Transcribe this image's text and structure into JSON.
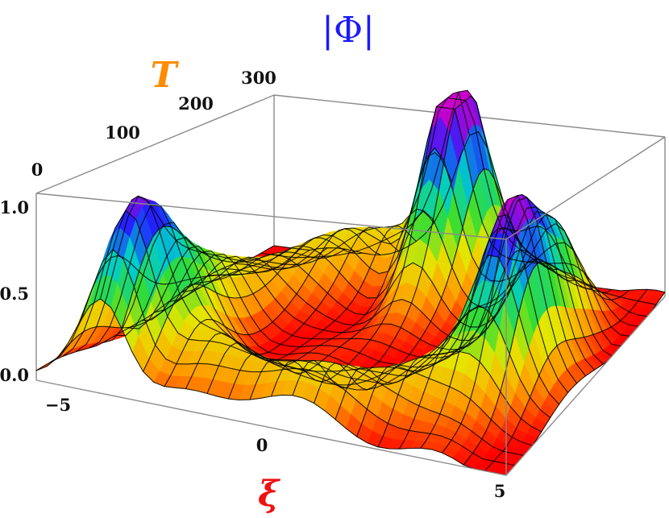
{
  "chart_data": {
    "type": "surface3d",
    "title": "|Φ|",
    "title_color": "#1a1aff",
    "axes": {
      "x": {
        "label": "ξ",
        "label_color": "#ee1111",
        "range": [
          -5,
          5
        ],
        "ticks": [
          "−5",
          "0",
          "5"
        ]
      },
      "y": {
        "label": "T",
        "label_color": "#ff8c00",
        "range": [
          0,
          300
        ],
        "ticks": [
          "0",
          "100",
          "200",
          "300"
        ]
      },
      "z": {
        "range": [
          0,
          1.0
        ],
        "ticks": [
          "0.0",
          "0.5",
          "1.0"
        ]
      }
    },
    "peaks": [
      {
        "xi": -3.6,
        "T": 40,
        "amplitude": 0.9
      },
      {
        "xi": 0.2,
        "T": 270,
        "amplitude": 1.0
      },
      {
        "xi": 3.6,
        "T": 150,
        "amplitude": 0.95
      }
    ],
    "colormap": [
      "#ff0000",
      "#ff9900",
      "#e6e600",
      "#33dd33",
      "#00cccc",
      "#2222ff",
      "#cc00cc"
    ],
    "grid": true
  }
}
